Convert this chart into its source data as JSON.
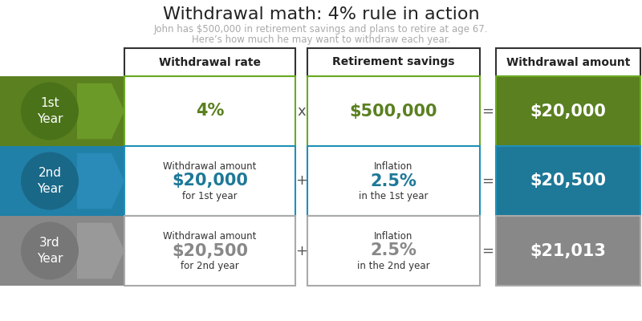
{
  "title": "Withdrawal math: 4% rule in action",
  "subtitle_line1": "John has $500,000 in retirement savings and plans to retire at age 67.",
  "subtitle_line2": "Here’s how much he may want to withdraw each year.",
  "header_labels": [
    "Withdrawal rate",
    "Retirement savings",
    "Withdrawal amount"
  ],
  "bg_color": "#ffffff",
  "title_color": "#222222",
  "subtitle_color": "#aaaaaa",
  "header_border_color": "#333333",
  "header_text_color": "#222222",
  "rows": [
    {
      "year_label": "1st\nYear",
      "circle_color": "#4a7219",
      "row_label_bg": "#5a8020",
      "arrow_color": "#6b9a28",
      "row_bg": "#ffffff",
      "result_bg": "#5a8020",
      "col1_top": "",
      "col1_value": "4%",
      "col1_bottom": "",
      "col1_value_color": "#5a8020",
      "operator": "x",
      "col2_top": "",
      "col2_value": "$500,000",
      "col2_bottom": "",
      "col2_value_color": "#5a8020",
      "result_value": "$20,000",
      "result_text_color": "#ffffff",
      "border_color": "#6aaa22"
    },
    {
      "year_label": "2nd\nYear",
      "circle_color": "#1a6888",
      "row_label_bg": "#2080a8",
      "arrow_color": "#2a8ab8",
      "row_bg": "#ffffff",
      "result_bg": "#1e7898",
      "col1_top": "Withdrawal amount",
      "col1_value": "$20,000",
      "col1_bottom": "for 1st year",
      "col1_value_color": "#1e7898",
      "operator": "+",
      "col2_top": "Inflation",
      "col2_value": "2.5%",
      "col2_bottom": "in the 1st year",
      "col2_value_color": "#1e7898",
      "result_value": "$20,500",
      "result_text_color": "#ffffff",
      "border_color": "#2090b8"
    },
    {
      "year_label": "3rd\nYear",
      "circle_color": "#777777",
      "row_label_bg": "#888888",
      "arrow_color": "#999999",
      "row_bg": "#ffffff",
      "result_bg": "#888888",
      "col1_top": "Withdrawal amount",
      "col1_value": "$20,500",
      "col1_bottom": "for 2nd year",
      "col1_value_color": "#888888",
      "operator": "+",
      "col2_top": "Inflation",
      "col2_value": "2.5%",
      "col2_bottom": "in the 2nd year",
      "col2_value_color": "#888888",
      "result_value": "$21,013",
      "result_text_color": "#ffffff",
      "border_color": "#aaaaaa"
    }
  ]
}
